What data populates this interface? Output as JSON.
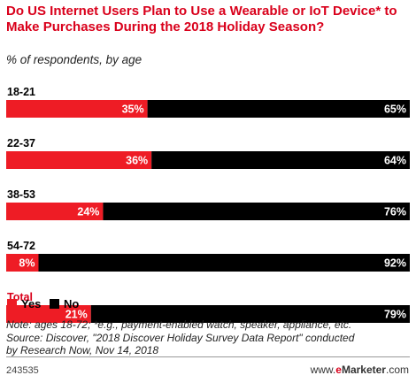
{
  "header": {
    "title": "Do US Internet Users Plan to Use a Wearable or IoT Device* to Make Purchases During the 2018 Holiday Season?",
    "subtitle": "% of respondents, by age"
  },
  "chart_data": {
    "type": "bar",
    "orientation": "horizontal",
    "stacked": true,
    "categories": [
      "18-21",
      "22-37",
      "38-53",
      "54-72",
      "Total"
    ],
    "series": [
      {
        "name": "Yes",
        "color": "#ee1c25",
        "values": [
          35,
          36,
          24,
          8,
          21
        ]
      },
      {
        "name": "No",
        "color": "#000000",
        "values": [
          65,
          64,
          76,
          92,
          79
        ]
      }
    ],
    "value_labels": {
      "Yes": [
        "35%",
        "36%",
        "24%",
        "8%",
        "21%"
      ],
      "No": [
        "65%",
        "64%",
        "76%",
        "92%",
        "79%"
      ]
    },
    "category_color": {
      "Total": "#d9001b"
    },
    "xlim": [
      0,
      100
    ],
    "legend_position": "bottom-left",
    "grid": false
  },
  "legend": {
    "yes_label": "Yes",
    "no_label": "No"
  },
  "notes": {
    "line1": "Note: ages 18-72; *e.g., payment-enabled watch, speaker, appliance, etc.",
    "line2": "Source: Discover, \"2018 Discover Holiday Survey Data Report\" conducted",
    "line3": "by Research Now, Nov 14, 2018"
  },
  "footer": {
    "chart_id": "243535",
    "brand_prefix": "www.",
    "brand_e": "e",
    "brand_name": "Marketer",
    "brand_suffix": ".com"
  }
}
